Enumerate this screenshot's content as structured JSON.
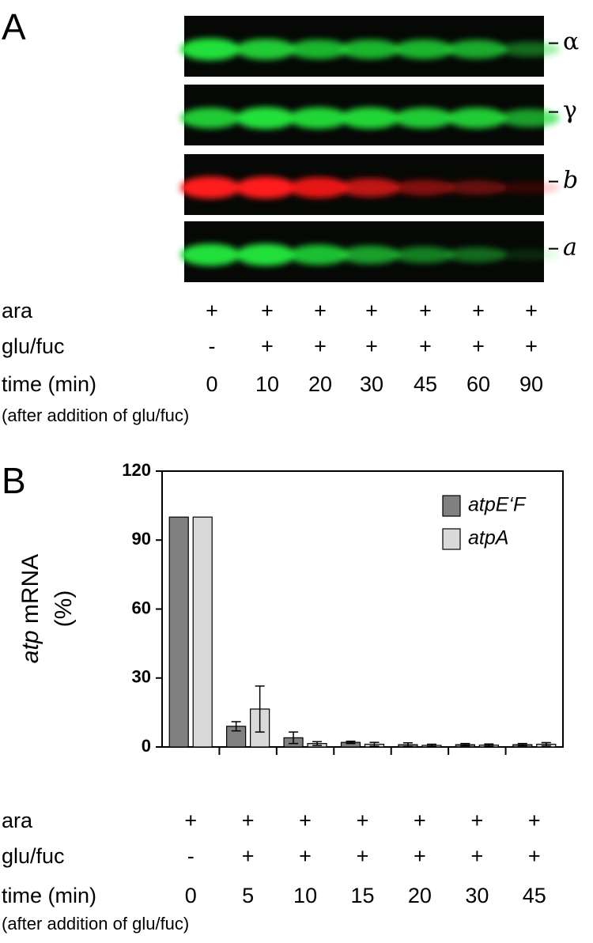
{
  "panel_a": {
    "label": "A",
    "blots": [
      {
        "label": "α",
        "italic": false,
        "color": "#22e03a"
      },
      {
        "label": "γ",
        "italic": false,
        "color": "#22e03a"
      },
      {
        "label": "b",
        "italic": true,
        "color": "#ff1a1a"
      },
      {
        "label": "a",
        "italic": true,
        "color": "#22e03a"
      }
    ],
    "rows": [
      {
        "label": "ara",
        "values": [
          "+",
          "+",
          "+",
          "+",
          "+",
          "+",
          "+"
        ]
      },
      {
        "label": "glu/fuc",
        "values": [
          "-",
          "+",
          "+",
          "+",
          "+",
          "+",
          "+"
        ]
      },
      {
        "label": "time (min)",
        "values": [
          "0",
          "10",
          "20",
          "30",
          "45",
          "60",
          "90"
        ]
      }
    ],
    "note": "(after addition of glu/fuc)"
  },
  "panel_b": {
    "label": "B"
  },
  "chart_data": {
    "type": "bar",
    "ylabel": {
      "italic": "atp",
      "text": " mRNA",
      "unit": "(%)"
    },
    "rows": [
      {
        "label": "ara",
        "values": [
          "+",
          "+",
          "+",
          "+",
          "+",
          "+",
          "+"
        ]
      },
      {
        "label": "glu/fuc",
        "values": [
          "-",
          "+",
          "+",
          "+",
          "+",
          "+",
          "+"
        ]
      }
    ],
    "xlabel": "time (min)",
    "categories": [
      "0",
      "5",
      "10",
      "15",
      "20",
      "30",
      "45"
    ],
    "note": "(after addition of glu/fuc)",
    "series": [
      {
        "name": "atpE‘F",
        "color": "#808080",
        "values": [
          100,
          9,
          4,
          2,
          1,
          1,
          1
        ],
        "errors": [
          null,
          2,
          2.5,
          0.5,
          0.8,
          0.5,
          0.5
        ]
      },
      {
        "name": "atpA",
        "color": "#d9d9d9",
        "values": [
          100,
          16.5,
          1.5,
          1.2,
          0.7,
          0.8,
          1.2
        ],
        "errors": [
          null,
          10,
          0.8,
          0.8,
          0.5,
          0.5,
          0.7
        ]
      }
    ],
    "ylim": [
      0,
      120
    ],
    "yticks": [
      0,
      30,
      60,
      90,
      120
    ],
    "legend": "upper right"
  }
}
